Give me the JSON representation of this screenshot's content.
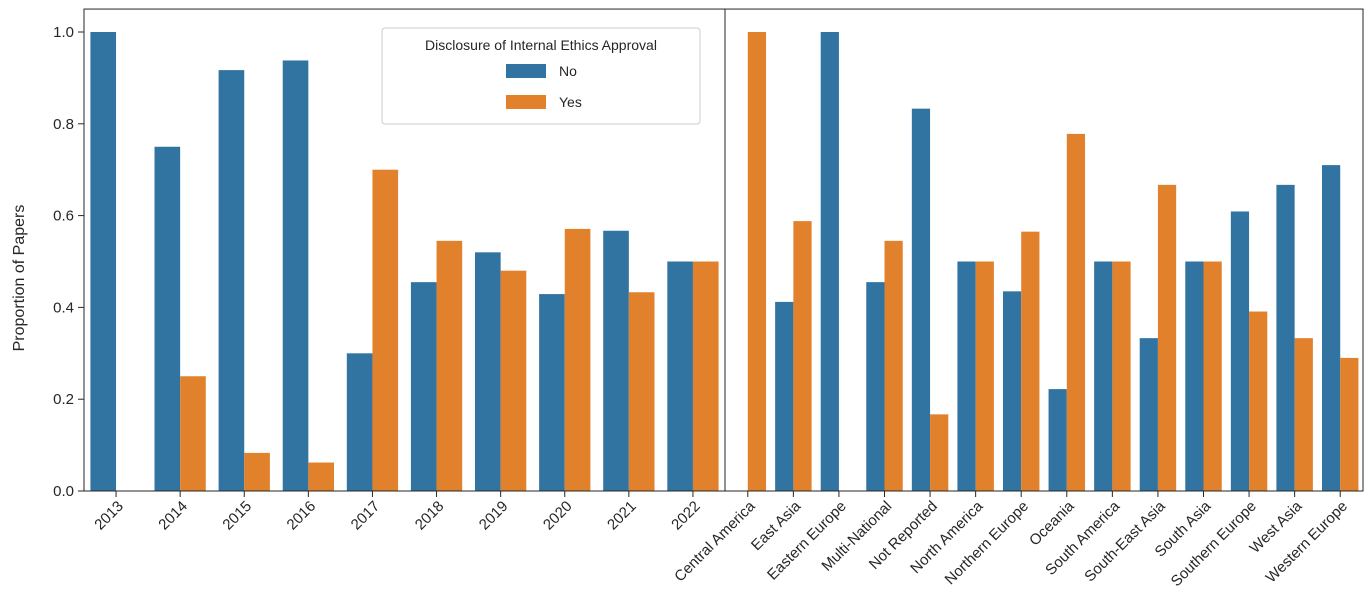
{
  "chart_data": [
    {
      "type": "bar",
      "ylabel": "Proportion of Papers",
      "xlabel": "",
      "ylim": [
        0,
        1.05
      ],
      "yticks": [
        "0.0",
        "0.2",
        "0.4",
        "0.6",
        "0.8",
        "1.0"
      ],
      "categories": [
        "2013",
        "2014",
        "2015",
        "2016",
        "2017",
        "2018",
        "2019",
        "2020",
        "2021",
        "2022"
      ],
      "series": [
        {
          "name": "No",
          "values": [
            1.0,
            0.75,
            0.917,
            0.938,
            0.3,
            0.455,
            0.52,
            0.429,
            0.567,
            0.5
          ]
        },
        {
          "name": "Yes",
          "values": [
            0.0,
            0.25,
            0.083,
            0.062,
            0.7,
            0.545,
            0.48,
            0.571,
            0.433,
            0.5
          ]
        }
      ],
      "legend": {
        "title": "Disclosure of Internal Ethics Approval",
        "entries": [
          "No",
          "Yes"
        ],
        "placement": "upper-right"
      }
    },
    {
      "type": "bar",
      "xlabel": "",
      "ylim": [
        0,
        1.05
      ],
      "categories": [
        "Central America",
        "East Asia",
        "Eastern Europe",
        "Multi-National",
        "Not Reported",
        "North America",
        "Northern Europe",
        "Oceania",
        "South America",
        "South-East Asia",
        "South Asia",
        "Southern Europe",
        "West Asia",
        "Western Europe"
      ],
      "series": [
        {
          "name": "No",
          "values": [
            0.0,
            0.412,
            1.0,
            0.455,
            0.833,
            0.5,
            0.435,
            0.222,
            0.5,
            0.333,
            0.5,
            0.609,
            0.667,
            0.71
          ]
        },
        {
          "name": "Yes",
          "values": [
            1.0,
            0.588,
            0.0,
            0.545,
            0.167,
            0.5,
            0.565,
            0.778,
            0.5,
            0.667,
            0.5,
            0.391,
            0.333,
            0.29
          ]
        }
      ]
    }
  ],
  "colors": {
    "No": "#3274a1",
    "Yes": "#e1812c",
    "axis": "#262626"
  }
}
